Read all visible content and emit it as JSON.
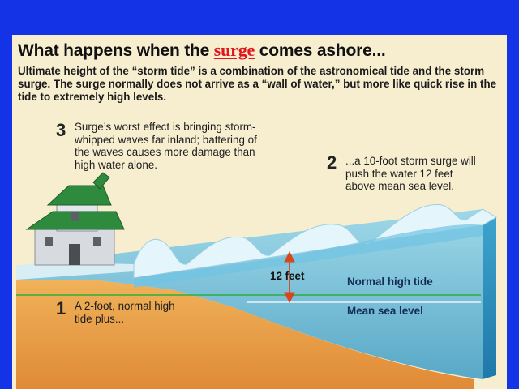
{
  "title_before": "What happens when the ",
  "title_highlight": "surge",
  "title_after": " comes ashore...",
  "intro": "Ultimate height of the “storm tide” is a combination of the astronomical tide and the storm surge. The surge normally does not arrive as a “wall of water,” but more like quick rise in the tide to extremely high levels.",
  "steps": [
    {
      "number": "1",
      "text": "A 2-foot, normal high tide plus..."
    },
    {
      "number": "2",
      "text": "...a 10-foot storm surge will push the water 12 feet above mean sea level."
    },
    {
      "number": "3",
      "text": "Surge’s worst effect is bringing storm-whipped waves far inland; battering of the waves causes more damage than high water alone."
    }
  ],
  "labels": {
    "height": "12 feet",
    "normal_high_tide": "Normal high tide",
    "mean_sea_level": "Mean sea level"
  },
  "colors": {
    "background": "#1432e6",
    "panel": "#f7eed0",
    "highlight": "#e0161e",
    "water": "#5fb8d8",
    "sand": "#e8a04a",
    "roof": "#2e8a3c",
    "tide_line": "#2fae3c",
    "arrow": "#d9461c"
  }
}
